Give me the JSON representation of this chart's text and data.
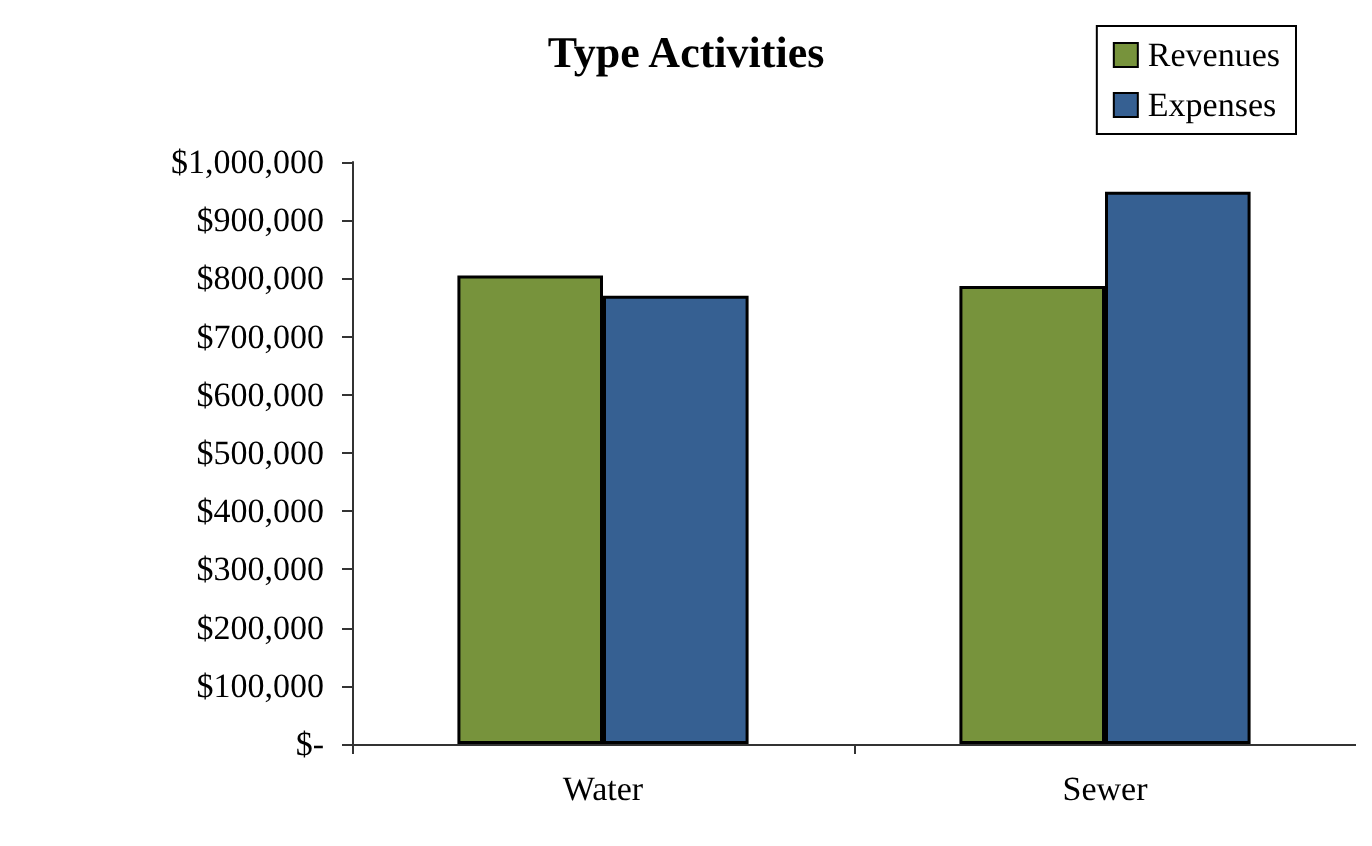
{
  "chart_data": {
    "type": "bar",
    "title": "Type Activities",
    "categories": [
      "Water",
      "Sewer"
    ],
    "series": [
      {
        "name": "Revenues",
        "color": "#77933c",
        "values": [
          805000,
          787000
        ]
      },
      {
        "name": "Expenses",
        "color": "#366092",
        "values": [
          770000,
          949000
        ]
      }
    ],
    "ylim": [
      0,
      1000000
    ],
    "yticks": [
      {
        "value": 0,
        "label": "$-"
      },
      {
        "value": 100000,
        "label": "$100,000"
      },
      {
        "value": 200000,
        "label": "$200,000"
      },
      {
        "value": 300000,
        "label": "$300,000"
      },
      {
        "value": 400000,
        "label": "$400,000"
      },
      {
        "value": 500000,
        "label": "$500,000"
      },
      {
        "value": 600000,
        "label": "$600,000"
      },
      {
        "value": 700000,
        "label": "$700,000"
      },
      {
        "value": 800000,
        "label": "$800,000"
      },
      {
        "value": 900000,
        "label": "$900,000"
      },
      {
        "value": 1000000,
        "label": "$1,000,000"
      }
    ],
    "grid": false,
    "legend": "top right"
  }
}
